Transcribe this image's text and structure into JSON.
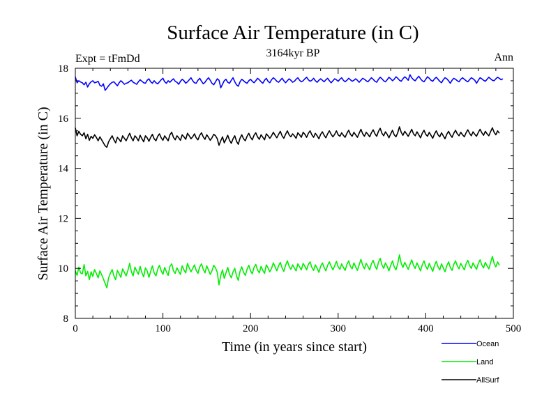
{
  "chart_data": {
    "type": "line",
    "title": "Surface Air Temperature (in C)",
    "subtitle": "3164kyr BP",
    "left_annotation": "Expt = tFmDd",
    "right_annotation": "Ann",
    "xlabel": "Time (in years since start)",
    "ylabel": "Surface Air Temperature (in C)",
    "xlim": [
      0,
      500
    ],
    "ylim": [
      8,
      18
    ],
    "xticks": [
      0,
      100,
      200,
      300,
      400,
      500
    ],
    "yticks": [
      8,
      10,
      12,
      14,
      16,
      18
    ],
    "grid": false,
    "legend_position": "bottom-right",
    "x_start": 0,
    "x_step": 2,
    "series": [
      {
        "name": "Ocean",
        "color": "#0000ff",
        "values": [
          17.66,
          17.42,
          17.5,
          17.45,
          17.42,
          17.34,
          17.44,
          17.25,
          17.38,
          17.46,
          17.5,
          17.42,
          17.44,
          17.48,
          17.32,
          17.28,
          17.38,
          17.12,
          17.2,
          17.3,
          17.38,
          17.44,
          17.46,
          17.38,
          17.3,
          17.42,
          17.5,
          17.44,
          17.36,
          17.4,
          17.42,
          17.48,
          17.52,
          17.44,
          17.4,
          17.36,
          17.46,
          17.54,
          17.48,
          17.42,
          17.4,
          17.52,
          17.58,
          17.46,
          17.4,
          17.5,
          17.42,
          17.38,
          17.46,
          17.54,
          17.6,
          17.46,
          17.4,
          17.5,
          17.44,
          17.52,
          17.58,
          17.48,
          17.44,
          17.36,
          17.48,
          17.56,
          17.5,
          17.4,
          17.46,
          17.54,
          17.62,
          17.5,
          17.42,
          17.4,
          17.52,
          17.6,
          17.48,
          17.38,
          17.44,
          17.54,
          17.62,
          17.52,
          17.4,
          17.34,
          17.46,
          17.58,
          17.52,
          17.22,
          17.36,
          17.5,
          17.56,
          17.44,
          17.4,
          17.52,
          17.62,
          17.46,
          17.34,
          17.28,
          17.46,
          17.56,
          17.5,
          17.44,
          17.4,
          17.5,
          17.56,
          17.48,
          17.42,
          17.5,
          17.6,
          17.54,
          17.46,
          17.4,
          17.52,
          17.6,
          17.48,
          17.42,
          17.54,
          17.62,
          17.56,
          17.48,
          17.44,
          17.52,
          17.6,
          17.5,
          17.42,
          17.5,
          17.58,
          17.52,
          17.44,
          17.48,
          17.56,
          17.62,
          17.52,
          17.46,
          17.5,
          17.58,
          17.64,
          17.54,
          17.48,
          17.52,
          17.6,
          17.5,
          17.44,
          17.52,
          17.58,
          17.52,
          17.46,
          17.54,
          17.6,
          17.5,
          17.42,
          17.5,
          17.58,
          17.54,
          17.48,
          17.56,
          17.62,
          17.52,
          17.46,
          17.52,
          17.6,
          17.54,
          17.48,
          17.52,
          17.58,
          17.52,
          17.44,
          17.52,
          17.6,
          17.56,
          17.5,
          17.46,
          17.54,
          17.62,
          17.56,
          17.48,
          17.44,
          17.56,
          17.64,
          17.58,
          17.5,
          17.46,
          17.54,
          17.64,
          17.58,
          17.5,
          17.56,
          17.66,
          17.6,
          17.52,
          17.48,
          17.58,
          17.66,
          17.6,
          17.52,
          17.74,
          17.62,
          17.54,
          17.5,
          17.6,
          17.68,
          17.58,
          17.5,
          17.46,
          17.56,
          17.66,
          17.6,
          17.52,
          17.48,
          17.58,
          17.64,
          17.56,
          17.48,
          17.42,
          17.54,
          17.62,
          17.58,
          17.5,
          17.4,
          17.52,
          17.6,
          17.56,
          17.5,
          17.46,
          17.56,
          17.62,
          17.56,
          17.5,
          17.46,
          17.54,
          17.62,
          17.58,
          17.52,
          17.4,
          17.52,
          17.62,
          17.58,
          17.52,
          17.48,
          17.56,
          17.64,
          17.58,
          17.52,
          17.5,
          17.58,
          17.64,
          17.6,
          17.54,
          17.58
        ]
      },
      {
        "name": "Land",
        "color": "#00ee00",
        "values": [
          9.9,
          9.72,
          10.05,
          9.82,
          9.78,
          10.15,
          9.7,
          9.88,
          9.55,
          9.86,
          9.68,
          9.95,
          9.8,
          9.62,
          9.9,
          9.75,
          9.58,
          9.4,
          9.22,
          9.62,
          9.8,
          9.95,
          9.7,
          9.55,
          9.92,
          9.78,
          9.64,
          9.98,
          9.84,
          9.7,
          9.92,
          10.2,
          9.86,
          9.7,
          10.05,
          9.9,
          9.76,
          10.08,
          9.82,
          9.66,
          10.02,
          9.9,
          9.64,
          9.88,
          10.1,
          9.82,
          9.7,
          9.96,
          10.12,
          9.9,
          9.76,
          10.04,
          9.86,
          9.72,
          10.08,
          10.18,
          9.9,
          9.8,
          10.02,
          9.88,
          9.76,
          10.1,
          9.94,
          9.82,
          10.2,
          10.02,
          9.86,
          10.0,
          10.14,
          9.92,
          9.8,
          10.06,
          10.18,
          9.96,
          9.82,
          10.1,
          9.94,
          9.76,
          9.9,
          10.12,
          10.02,
          9.84,
          9.34,
          9.72,
          9.94,
          9.6,
          9.82,
          10.04,
          9.76,
          9.62,
          9.86,
          10.0,
          9.7,
          9.52,
          9.88,
          10.06,
          9.84,
          9.72,
          9.96,
          10.12,
          9.9,
          9.78,
          10.04,
          10.16,
          9.94,
          9.82,
          10.08,
          9.92,
          9.8,
          10.14,
          10.02,
          9.86,
          10.0,
          10.22,
          10.06,
          9.9,
          10.1,
          10.24,
          10.02,
          9.88,
          10.12,
          10.3,
          10.08,
          9.96,
          10.14,
          10.02,
          9.9,
          10.18,
          10.06,
          9.94,
          10.2,
          10.08,
          9.94,
          10.16,
          10.26,
          10.04,
          9.92,
          10.14,
          10.0,
          9.84,
          10.08,
          10.22,
          10.04,
          9.9,
          10.12,
          10.26,
          10.08,
          9.94,
          10.1,
          10.28,
          10.06,
          9.96,
          10.18,
          10.04,
          9.92,
          10.16,
          10.3,
          10.08,
          9.98,
          10.22,
          10.06,
          9.92,
          10.14,
          10.36,
          10.12,
          9.98,
          10.2,
          10.08,
          9.94,
          10.18,
          10.32,
          10.1,
          9.96,
          10.24,
          10.4,
          10.14,
          10.0,
          10.22,
          10.08,
          9.9,
          10.12,
          10.3,
          10.06,
          9.94,
          10.18,
          10.54,
          10.2,
          10.04,
          10.24,
          10.1,
          9.96,
          10.16,
          10.34,
          10.12,
          10.0,
          10.22,
          10.06,
          9.9,
          10.14,
          10.3,
          10.08,
          9.96,
          10.2,
          10.04,
          9.88,
          10.12,
          10.28,
          10.06,
          9.94,
          10.18,
          10.02,
          9.86,
          10.1,
          10.26,
          10.04,
          9.92,
          10.16,
          10.3,
          10.1,
          9.98,
          10.2,
          10.06,
          9.94,
          10.18,
          10.32,
          10.12,
          10.0,
          10.22,
          10.08,
          9.96,
          10.2,
          10.34,
          10.14,
          10.02,
          10.24,
          10.1,
          9.98,
          10.22,
          10.48,
          10.2,
          10.06,
          10.26,
          10.12
        ]
      },
      {
        "name": "AllSurf",
        "color": "#000000",
        "values": [
          15.62,
          15.3,
          15.48,
          15.36,
          15.3,
          15.42,
          15.18,
          15.36,
          15.12,
          15.28,
          15.2,
          15.34,
          15.24,
          15.1,
          15.26,
          15.14,
          15.02,
          14.9,
          14.84,
          15.06,
          15.18,
          15.3,
          15.14,
          15.02,
          15.24,
          15.16,
          15.06,
          15.3,
          15.2,
          15.1,
          15.26,
          15.4,
          15.22,
          15.1,
          15.3,
          15.22,
          15.1,
          15.32,
          15.18,
          15.06,
          15.3,
          15.22,
          15.08,
          15.24,
          15.36,
          15.18,
          15.1,
          15.28,
          15.38,
          15.22,
          15.12,
          15.3,
          15.2,
          15.1,
          15.34,
          15.44,
          15.24,
          15.14,
          15.3,
          15.22,
          15.12,
          15.34,
          15.26,
          15.16,
          15.4,
          15.3,
          15.18,
          15.26,
          15.38,
          15.22,
          15.14,
          15.32,
          15.42,
          15.26,
          15.16,
          15.34,
          15.24,
          15.12,
          15.22,
          15.36,
          15.3,
          15.18,
          14.92,
          15.1,
          15.26,
          15.02,
          15.16,
          15.32,
          15.12,
          15.0,
          15.18,
          15.3,
          15.08,
          14.96,
          15.2,
          15.34,
          15.18,
          15.1,
          15.28,
          15.4,
          15.24,
          15.14,
          15.32,
          15.42,
          15.26,
          15.16,
          15.34,
          15.24,
          15.14,
          15.38,
          15.3,
          15.2,
          15.3,
          15.44,
          15.32,
          15.22,
          15.36,
          15.48,
          15.3,
          15.2,
          15.36,
          15.5,
          15.34,
          15.26,
          15.38,
          15.3,
          15.2,
          15.42,
          15.34,
          15.24,
          15.44,
          15.36,
          15.24,
          15.4,
          15.5,
          15.34,
          15.24,
          15.4,
          15.3,
          15.18,
          15.36,
          15.46,
          15.32,
          15.22,
          15.38,
          15.5,
          15.36,
          15.26,
          15.36,
          15.5,
          15.34,
          15.28,
          15.42,
          15.32,
          15.24,
          15.4,
          15.52,
          15.36,
          15.28,
          15.44,
          15.34,
          15.24,
          15.4,
          15.56,
          15.38,
          15.28,
          15.44,
          15.36,
          15.26,
          15.42,
          15.54,
          15.38,
          15.28,
          15.48,
          15.6,
          15.4,
          15.3,
          15.46,
          15.36,
          15.22,
          15.38,
          15.52,
          15.34,
          15.26,
          15.42,
          15.66,
          15.44,
          15.32,
          15.48,
          15.38,
          15.28,
          15.42,
          15.56,
          15.38,
          15.3,
          15.46,
          15.34,
          15.22,
          15.4,
          15.52,
          15.36,
          15.28,
          15.44,
          15.32,
          15.2,
          15.38,
          15.5,
          15.34,
          15.26,
          15.42,
          15.3,
          15.18,
          15.36,
          15.48,
          15.34,
          15.24,
          15.4,
          15.52,
          15.38,
          15.3,
          15.44,
          15.34,
          15.26,
          15.42,
          15.54,
          15.4,
          15.3,
          15.46,
          15.36,
          15.28,
          15.44,
          15.56,
          15.42,
          15.32,
          15.48,
          15.38,
          15.3,
          15.46,
          15.62,
          15.44,
          15.34,
          15.5,
          15.4
        ]
      }
    ]
  }
}
